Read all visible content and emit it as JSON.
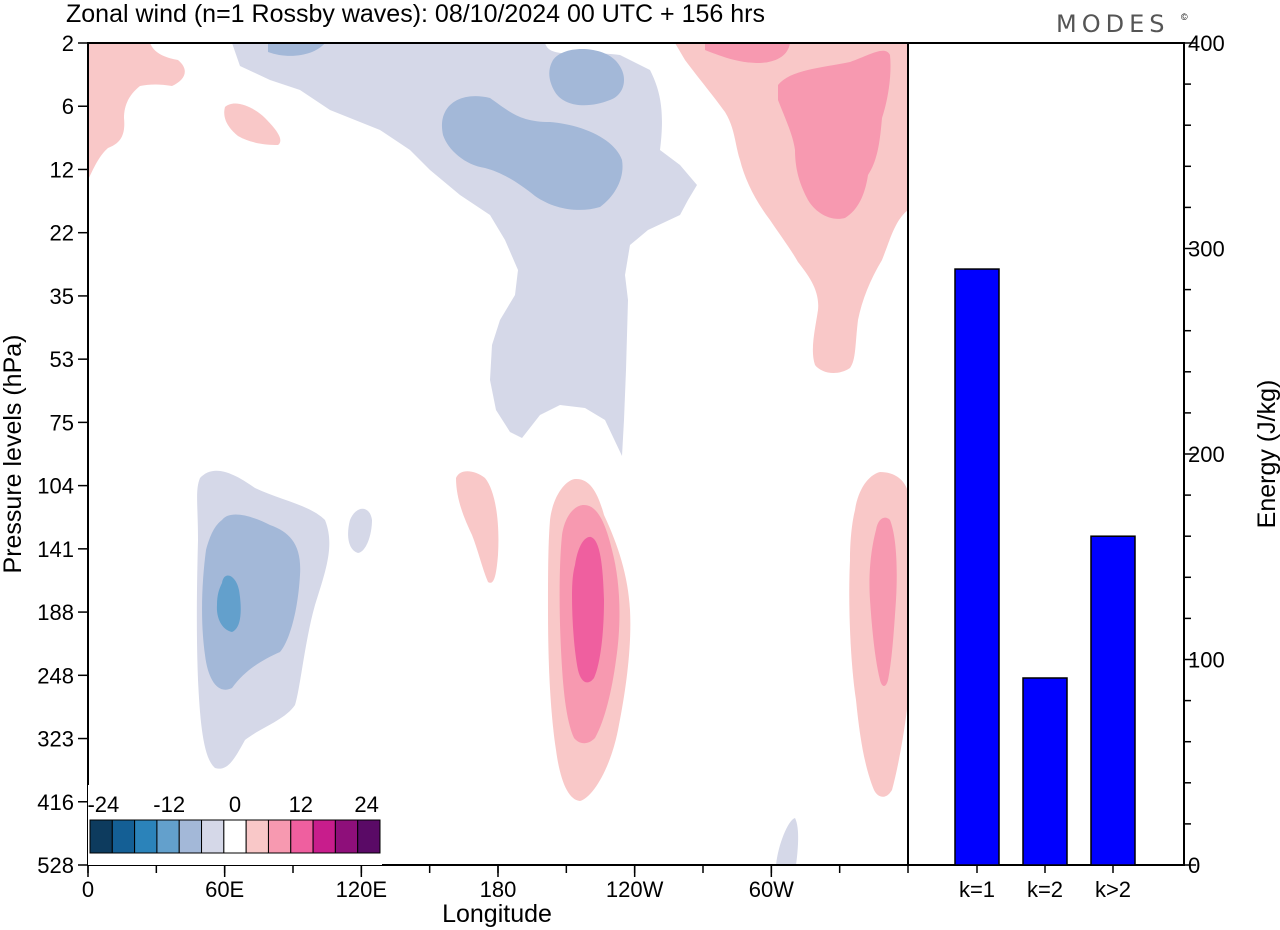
{
  "header": {
    "title": "Zonal wind (n=1 Rossby waves):  08/10/2024  00 UTC  + 156 hrs",
    "brand": "MODES",
    "brand_mark": "©"
  },
  "chart_data": [
    {
      "type": "heatmap",
      "title": "Zonal wind (n=1 Rossby waves):  08/10/2024  00 UTC  + 156 hrs",
      "xlabel": "Longitude",
      "ylabel": "Pressure levels (hPa)",
      "x_ticks": [
        "0",
        "60E",
        "120E",
        "180",
        "120W",
        "60W"
      ],
      "x_range_deg": [
        0,
        360
      ],
      "y_ticks": [
        "2",
        "6",
        "12",
        "22",
        "35",
        "53",
        "75",
        "104",
        "141",
        "188",
        "248",
        "323",
        "416",
        "528"
      ],
      "grid": false,
      "colorbar": {
        "labels": [
          "-24",
          "-12",
          "0",
          "12",
          "24"
        ],
        "colors": [
          "#0d3b5e",
          "#145f95",
          "#2b83ba",
          "#63a0cc",
          "#a3b8d8",
          "#d5d8e8",
          "#ffffff",
          "#f9c8c8",
          "#f799b0",
          "#ef5f9f",
          "#c81d8c",
          "#8e0f7a",
          "#5a0a66"
        ],
        "placement": "bottom-left"
      },
      "contours": [
        {
          "level": "-3",
          "color": "#d5d8e8"
        },
        {
          "level": "-6",
          "color": "#a3b8d8"
        },
        {
          "level": "-9",
          "color": "#63a0cc"
        },
        {
          "level": "3",
          "color": "#f9c8c8"
        },
        {
          "level": "6",
          "color": "#f799b0"
        },
        {
          "level": "9",
          "color": "#ef5f9f"
        }
      ]
    },
    {
      "type": "bar",
      "categories": [
        "k=1",
        "k=2",
        "k>2"
      ],
      "values": [
        290,
        91,
        160
      ],
      "ylabel": "Energy (J/kg)",
      "ylim": [
        0,
        400
      ],
      "y_ticks": [
        "0",
        "100",
        "200",
        "300",
        "400"
      ],
      "bar_color": "#0000ff"
    }
  ]
}
